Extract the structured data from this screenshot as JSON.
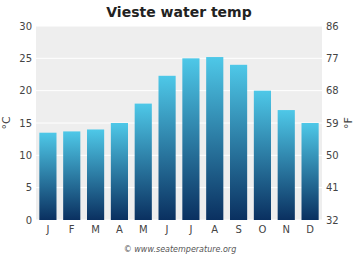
{
  "chart_data": {
    "type": "bar",
    "title": "Vieste water temp",
    "categories": [
      "J",
      "F",
      "M",
      "A",
      "M",
      "J",
      "J",
      "A",
      "S",
      "O",
      "N",
      "D"
    ],
    "values": [
      13.5,
      13.7,
      14.0,
      15.0,
      18.0,
      22.3,
      25.0,
      25.2,
      24.0,
      20.0,
      17.0,
      15.0
    ],
    "color": [
      "#0a3060",
      "#4ec8e8"
    ],
    "y_label": "°C",
    "y2_label": "°F",
    "ylim": [
      0,
      30
    ],
    "yticks": [
      0,
      5,
      10,
      15,
      20,
      25,
      30
    ],
    "y2lim": [
      32,
      86
    ],
    "y2ticks": [
      32,
      41,
      50,
      59,
      68,
      77,
      86
    ],
    "grid": true,
    "annotations": [
      "© www.seatemperature.org"
    ]
  }
}
